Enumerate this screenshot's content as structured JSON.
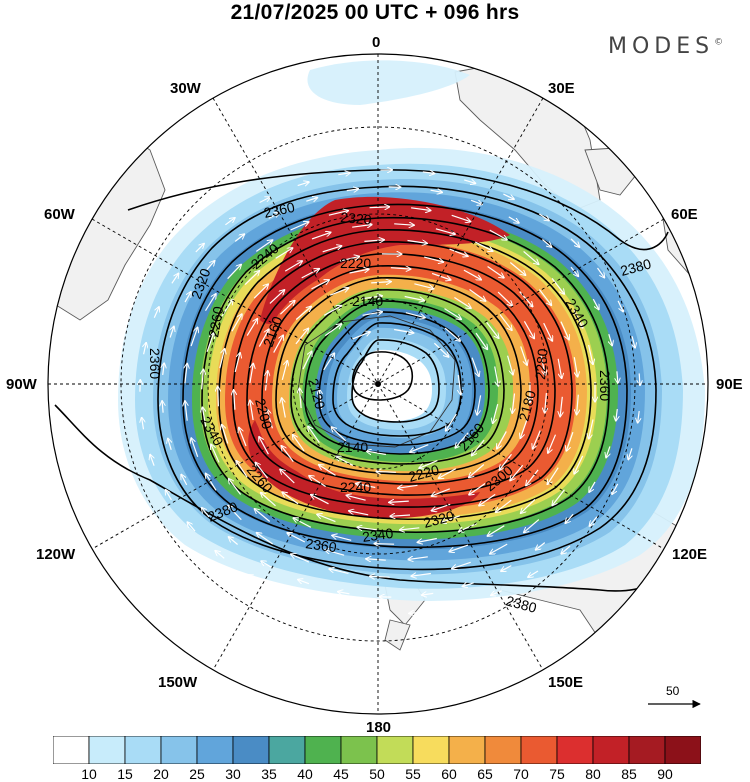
{
  "title": "21/07/2025  00 UTC  + 096 hrs",
  "brand": "MODES",
  "brand_mark": "©",
  "lon_labels": {
    "n": "0",
    "ne30": "30E",
    "ne60": "60E",
    "e": "90E",
    "se120": "120E",
    "se150": "150E",
    "s": "180",
    "sw150": "150W",
    "sw120": "120W",
    "w": "90W",
    "nw60": "60W",
    "nw30": "30W"
  },
  "reference_vector": {
    "label": "50"
  },
  "colorbar": {
    "ticks": [
      "10",
      "15",
      "20",
      "25",
      "30",
      "35",
      "40",
      "45",
      "50",
      "55",
      "60",
      "65",
      "70",
      "75",
      "80",
      "85",
      "90"
    ],
    "colors": [
      "#ffffff",
      "#c8ecfb",
      "#a9dcf6",
      "#86c3ea",
      "#61a5db",
      "#4a8cc5",
      "#4ba7a0",
      "#4fb24f",
      "#7cc24d",
      "#c2dc58",
      "#f7dc5d",
      "#f4b04a",
      "#f08a3b",
      "#ea5a31",
      "#dc2f2f",
      "#c22127",
      "#a51b22",
      "#8c1119"
    ]
  },
  "contours": [
    {
      "label": "2380"
    },
    {
      "label": "2360"
    },
    {
      "label": "2340"
    },
    {
      "label": "2320"
    },
    {
      "label": "2300"
    },
    {
      "label": "2280"
    },
    {
      "label": "2260"
    },
    {
      "label": "2240"
    },
    {
      "label": "2220"
    },
    {
      "label": "2200"
    },
    {
      "label": "2180"
    },
    {
      "label": "2160"
    },
    {
      "label": "2140"
    },
    {
      "label": "2120"
    }
  ],
  "map_data": {
    "projection": "south polar stereographic",
    "field": "wind speed (shaded) and geopotential height (contours)",
    "vortex_center_lon": 0
  }
}
